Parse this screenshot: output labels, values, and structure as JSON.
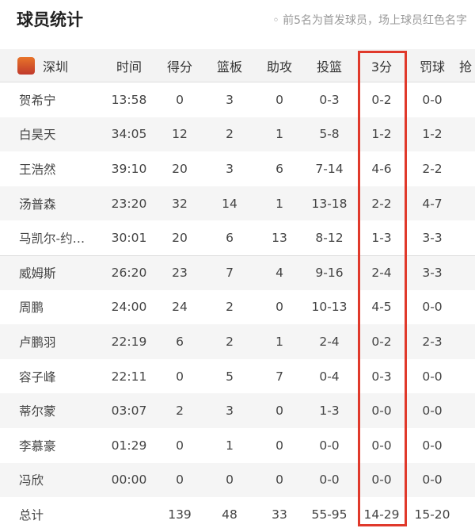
{
  "header": {
    "title": "球员统计",
    "note": "◦ 前5名为首发球员，场上球员红色名字"
  },
  "table": {
    "team": "深圳",
    "columns": [
      "时间",
      "得分",
      "篮板",
      "助攻",
      "投篮",
      "3分",
      "罚球",
      "抢"
    ],
    "rows": [
      [
        "贺希宁",
        "13:58",
        "0",
        "3",
        "0",
        "0-3",
        "0-2",
        "0-0"
      ],
      [
        "白昊天",
        "34:05",
        "12",
        "2",
        "1",
        "5-8",
        "1-2",
        "1-2"
      ],
      [
        "王浩然",
        "39:10",
        "20",
        "3",
        "6",
        "7-14",
        "4-6",
        "2-2"
      ],
      [
        "汤普森",
        "23:20",
        "32",
        "14",
        "1",
        "13-18",
        "2-2",
        "4-7"
      ],
      [
        "马凯尔-约…",
        "30:01",
        "20",
        "6",
        "13",
        "8-12",
        "1-3",
        "3-3"
      ],
      [
        "威姆斯",
        "26:20",
        "23",
        "7",
        "4",
        "9-16",
        "2-4",
        "3-3"
      ],
      [
        "周鹏",
        "24:00",
        "24",
        "2",
        "0",
        "10-13",
        "4-5",
        "0-0"
      ],
      [
        "卢鹏羽",
        "22:19",
        "6",
        "2",
        "1",
        "2-4",
        "0-2",
        "2-3"
      ],
      [
        "容子峰",
        "22:11",
        "0",
        "5",
        "7",
        "0-4",
        "0-3",
        "0-0"
      ],
      [
        "蒂尔蒙",
        "03:07",
        "2",
        "3",
        "0",
        "1-3",
        "0-0",
        "0-0"
      ],
      [
        "李慕豪",
        "01:29",
        "0",
        "1",
        "0",
        "0-0",
        "0-0",
        "0-0"
      ],
      [
        "冯欣",
        "00:00",
        "0",
        "0",
        "0",
        "0-0",
        "0-0",
        "0-0"
      ]
    ],
    "total": [
      "总计",
      "",
      "139",
      "48",
      "33",
      "55-95",
      "14-29",
      "15-20"
    ]
  },
  "highlight_color": "#e0392b"
}
